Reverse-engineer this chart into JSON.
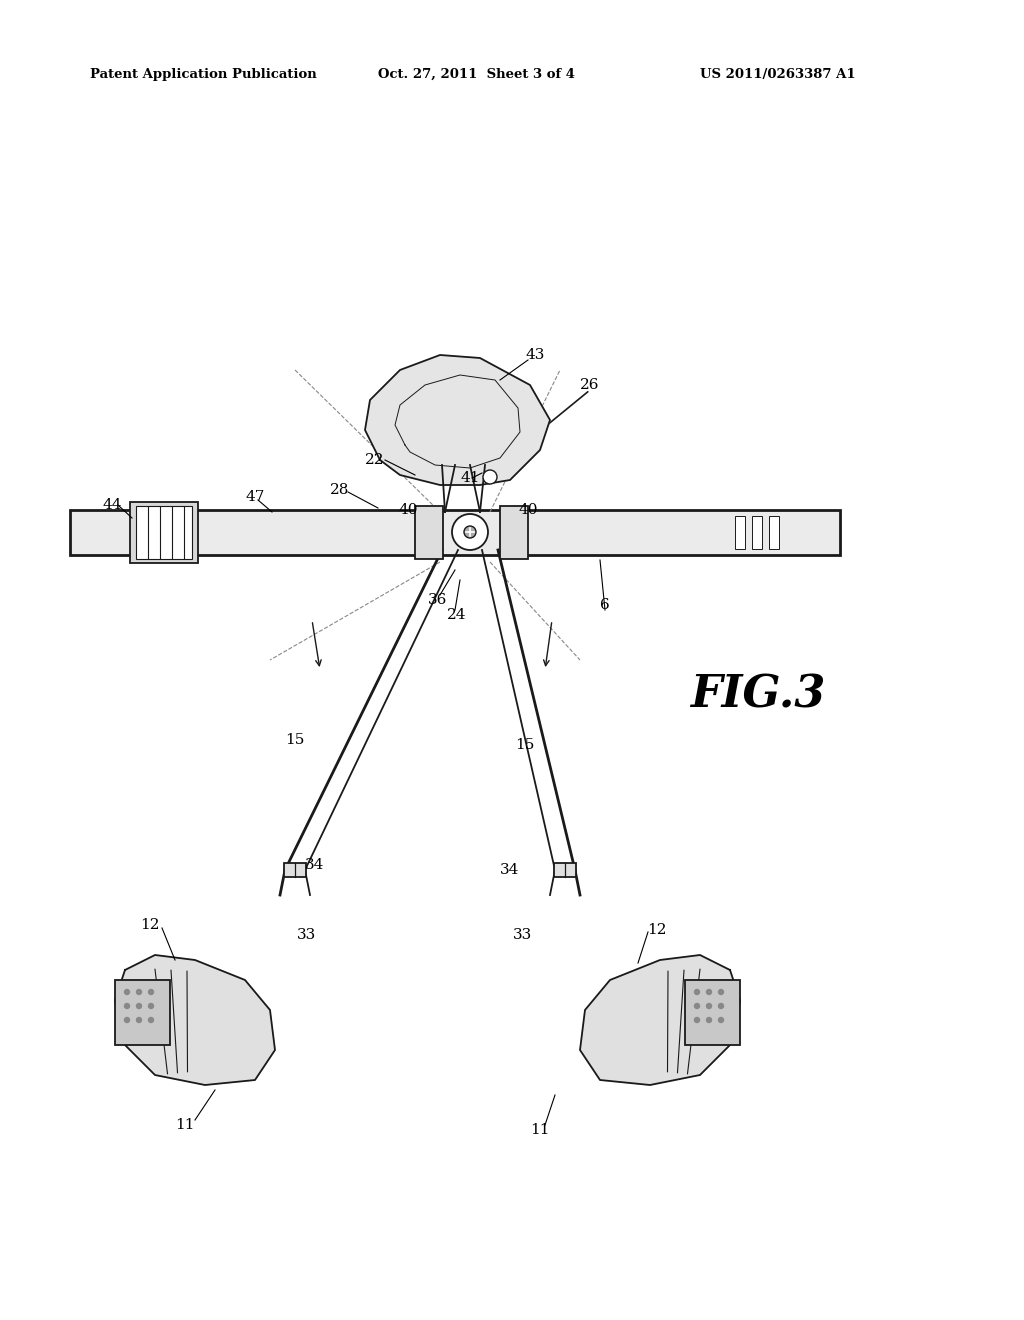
{
  "bg_color": "#ffffff",
  "header_left": "Patent Application Publication",
  "header_mid": "Oct. 27, 2011  Sheet 3 of 4",
  "header_right": "US 2011/0263387 A1",
  "fig_label": "FIG.3",
  "line_color": "#1a1a1a",
  "fill_light": "#e8e8e8",
  "fill_white": "#ffffff",
  "fill_medium": "#d0d0d0"
}
